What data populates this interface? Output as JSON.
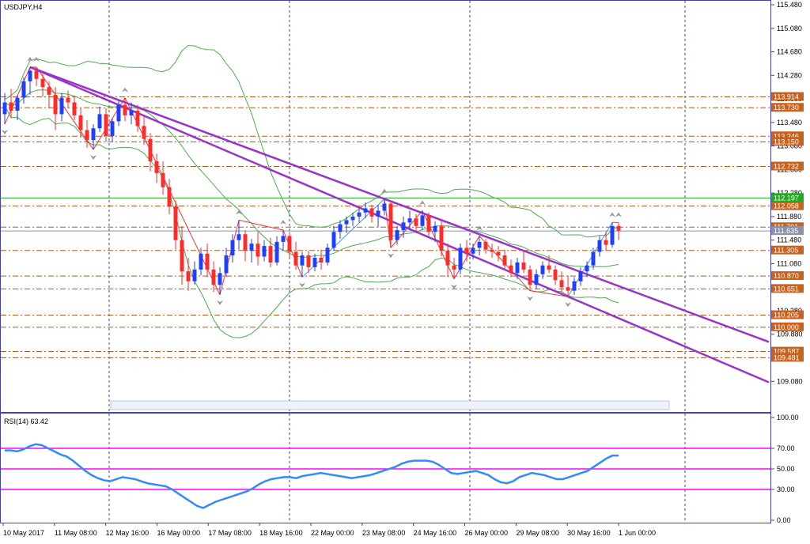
{
  "main_title": "USDJPY,H4",
  "rsi_title": "RSI(14) 63.42",
  "colors": {
    "axis": "#3f3fbf",
    "bull": "#1f3fff",
    "bear": "#ff2a2a",
    "bollinger": "#4caf50",
    "trendline": "#9933cc",
    "level_line": "#b05a1a",
    "level_label_bg": "#c8621f",
    "green_label_bg": "#22aa22",
    "gray_label_bg": "#8a94a6",
    "rsi_line": "#2f8cff",
    "rsi_level": "#ff00ff",
    "zigzag": "#ff3030",
    "zigzag_blue": "#4a90e2",
    "fractal": "#999999"
  },
  "chart_data": [
    {
      "type": "candlestick",
      "title": "USDJPY,H4",
      "ylim": [
        108.6,
        115.48
      ],
      "y_ticks": [
        "115.480",
        "115.080",
        "114.680",
        "114.280",
        "113.880",
        "113.480",
        "113.080",
        "112.680",
        "112.280",
        "111.880",
        "111.480",
        "111.080",
        "110.680",
        "110.280",
        "109.880",
        "109.480",
        "109.080"
      ],
      "x_labels": [
        "10 May 2017",
        "11 May 08:00",
        "12 May 16:00",
        "16 May 00:00",
        "17 May 08:00",
        "18 May 16:00",
        "22 May 00:00",
        "23 May 08:00",
        "24 May 16:00",
        "26 May 00:00",
        "29 May 08:00",
        "30 May 16:00",
        "1 Jun 00:00"
      ],
      "horizontal_levels": [
        "113.914",
        "113.730",
        "113.246",
        "113.150",
        "112.732",
        "112.058",
        "111.701",
        "111.305",
        "110.870",
        "110.651",
        "110.205",
        "110.000",
        "109.587",
        "109.481"
      ],
      "resistance_level": "112.197",
      "current_price_label": "111.635",
      "candles": [
        [
          113.62,
          113.98,
          113.45,
          113.82
        ],
        [
          113.82,
          114.05,
          113.55,
          113.68
        ],
        [
          113.68,
          113.95,
          113.52,
          113.9
        ],
        [
          113.9,
          114.25,
          113.8,
          114.18
        ],
        [
          114.18,
          114.42,
          113.95,
          114.36
        ],
        [
          114.36,
          114.42,
          114.1,
          114.22
        ],
        [
          114.22,
          114.3,
          113.92,
          114.08
        ],
        [
          114.08,
          114.18,
          113.72,
          113.95
        ],
        [
          113.95,
          114.08,
          113.35,
          113.62
        ],
        [
          113.62,
          113.98,
          113.5,
          113.9
        ],
        [
          113.9,
          114.02,
          113.72,
          113.82
        ],
        [
          113.82,
          113.92,
          113.52,
          113.6
        ],
        [
          113.6,
          113.72,
          113.22,
          113.35
        ],
        [
          113.35,
          113.52,
          113.05,
          113.18
        ],
        [
          113.18,
          113.45,
          113.02,
          113.38
        ],
        [
          113.38,
          113.75,
          113.32,
          113.62
        ],
        [
          113.62,
          113.72,
          113.15,
          113.25
        ],
        [
          113.25,
          113.55,
          113.15,
          113.5
        ],
        [
          113.5,
          113.85,
          113.42,
          113.78
        ],
        [
          113.78,
          113.9,
          113.5,
          113.6
        ],
        [
          113.6,
          113.82,
          113.45,
          113.68
        ],
        [
          113.68,
          113.78,
          113.32,
          113.42
        ],
        [
          113.42,
          113.58,
          113.1,
          113.2
        ],
        [
          113.2,
          113.3,
          112.65,
          112.82
        ],
        [
          112.82,
          112.95,
          112.45,
          112.62
        ],
        [
          112.62,
          112.82,
          112.25,
          112.38
        ],
        [
          112.38,
          112.52,
          111.92,
          112.05
        ],
        [
          112.05,
          112.15,
          111.32,
          111.48
        ],
        [
          111.48,
          111.72,
          110.72,
          110.95
        ],
        [
          110.95,
          111.18,
          110.62,
          110.78
        ],
        [
          110.78,
          111.12,
          110.72,
          110.98
        ],
        [
          110.98,
          111.35,
          110.88,
          111.25
        ],
        [
          111.25,
          111.42,
          110.85,
          110.98
        ],
        [
          110.98,
          111.12,
          110.6,
          110.72
        ],
        [
          110.72,
          111.02,
          110.55,
          110.92
        ],
        [
          110.92,
          111.35,
          110.85,
          111.22
        ],
        [
          111.22,
          111.58,
          111.1,
          111.48
        ],
        [
          111.48,
          111.82,
          111.32,
          111.58
        ],
        [
          111.58,
          111.65,
          111.12,
          111.3
        ],
        [
          111.3,
          111.5,
          111.1,
          111.42
        ],
        [
          111.42,
          111.62,
          111.05,
          111.2
        ],
        [
          111.2,
          111.48,
          111.12,
          111.38
        ],
        [
          111.38,
          111.52,
          111.02,
          111.1
        ],
        [
          111.1,
          111.55,
          111.05,
          111.45
        ],
        [
          111.45,
          111.65,
          111.3,
          111.55
        ],
        [
          111.55,
          111.62,
          111.18,
          111.28
        ],
        [
          111.28,
          111.45,
          110.98,
          111.05
        ],
        [
          111.05,
          111.28,
          110.85,
          111.22
        ],
        [
          111.22,
          111.3,
          110.92,
          111.02
        ],
        [
          111.02,
          111.25,
          110.95,
          111.18
        ],
        [
          111.18,
          111.32,
          110.98,
          111.1
        ],
        [
          111.1,
          111.42,
          111.05,
          111.35
        ],
        [
          111.35,
          111.72,
          111.3,
          111.62
        ],
        [
          111.62,
          111.82,
          111.5,
          111.75
        ],
        [
          111.75,
          111.88,
          111.6,
          111.82
        ],
        [
          111.82,
          111.95,
          111.72,
          111.88
        ],
        [
          111.88,
          112.02,
          111.78,
          111.95
        ],
        [
          111.95,
          112.12,
          111.85,
          112.02
        ],
        [
          112.02,
          112.08,
          111.78,
          111.88
        ],
        [
          111.88,
          112.08,
          111.7,
          111.98
        ],
        [
          111.98,
          112.18,
          111.9,
          112.1
        ],
        [
          112.1,
          112.15,
          111.35,
          111.48
        ],
        [
          111.48,
          111.72,
          111.4,
          111.65
        ],
        [
          111.65,
          111.88,
          111.52,
          111.78
        ],
        [
          111.78,
          111.98,
          111.65,
          111.85
        ],
        [
          111.85,
          111.92,
          111.6,
          111.72
        ],
        [
          111.72,
          111.98,
          111.65,
          111.9
        ],
        [
          111.9,
          111.95,
          111.55,
          111.62
        ],
        [
          111.62,
          111.8,
          111.45,
          111.72
        ],
        [
          111.72,
          111.82,
          111.2,
          111.3
        ],
        [
          111.3,
          111.42,
          110.85,
          111.05
        ],
        [
          111.05,
          111.18,
          110.82,
          110.98
        ],
        [
          110.98,
          111.42,
          110.9,
          111.35
        ],
        [
          111.35,
          111.48,
          111.12,
          111.25
        ],
        [
          111.25,
          111.42,
          111.15,
          111.35
        ],
        [
          111.35,
          111.55,
          111.22,
          111.45
        ],
        [
          111.45,
          111.5,
          111.25,
          111.32
        ],
        [
          111.32,
          111.42,
          111.18,
          111.28
        ],
        [
          111.28,
          111.38,
          111.12,
          111.22
        ],
        [
          111.22,
          111.32,
          110.98,
          111.05
        ],
        [
          111.05,
          111.15,
          110.85,
          110.92
        ],
        [
          110.92,
          111.18,
          110.82,
          111.1
        ],
        [
          111.1,
          111.28,
          110.92,
          110.98
        ],
        [
          110.98,
          111.05,
          110.62,
          110.72
        ],
        [
          110.72,
          110.98,
          110.65,
          110.9
        ],
        [
          110.9,
          111.12,
          110.82,
          111.05
        ],
        [
          111.05,
          111.22,
          110.92,
          110.98
        ],
        [
          110.98,
          111.05,
          110.72,
          110.8
        ],
        [
          110.8,
          110.95,
          110.6,
          110.68
        ],
        [
          110.68,
          110.88,
          110.52,
          110.62
        ],
        [
          110.62,
          110.85,
          110.55,
          110.78
        ],
        [
          110.78,
          111.02,
          110.7,
          110.95
        ],
        [
          110.95,
          111.12,
          110.85,
          111.05
        ],
        [
          111.05,
          111.35,
          110.98,
          111.28
        ],
        [
          111.28,
          111.55,
          111.2,
          111.48
        ],
        [
          111.48,
          111.62,
          111.3,
          111.4
        ],
        [
          111.4,
          111.78,
          111.35,
          111.72
        ],
        [
          111.72,
          111.78,
          111.48,
          111.64
        ]
      ]
    },
    {
      "type": "line",
      "title": "RSI(14) 63.42",
      "ylim": [
        0,
        100
      ],
      "y_ticks": [
        "100.00",
        "70.00",
        "50.00",
        "30.00",
        "0.00"
      ],
      "levels": [
        70,
        50,
        30
      ],
      "values": [
        68,
        68,
        67,
        69,
        72,
        74,
        73,
        70,
        67,
        64,
        62,
        58,
        53,
        48,
        44,
        41,
        39,
        38,
        40,
        42,
        41,
        40,
        38,
        36,
        35,
        34,
        33,
        30,
        26,
        22,
        18,
        14,
        12,
        15,
        18,
        20,
        22,
        24,
        26,
        28,
        31,
        35,
        38,
        40,
        41,
        42,
        42,
        41,
        43,
        44,
        45,
        46,
        45,
        44,
        43,
        42,
        41,
        42,
        43,
        44,
        46,
        48,
        50,
        52,
        55,
        57,
        58,
        58,
        58,
        57,
        54,
        50,
        46,
        45,
        46,
        47,
        48,
        46,
        44,
        40,
        37,
        36,
        38,
        42,
        44,
        46,
        45,
        44,
        42,
        40,
        40,
        42,
        44,
        46,
        48,
        52,
        56,
        60,
        63,
        63
      ]
    }
  ]
}
